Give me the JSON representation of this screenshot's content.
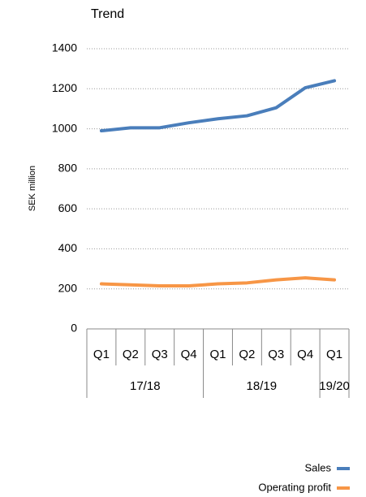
{
  "chart_data": {
    "type": "line",
    "title": "Trend",
    "y_label": "SEK million",
    "category_groups": [
      {
        "label": "17/18",
        "categories": [
          "Q1",
          "Q2",
          "Q3",
          "Q4"
        ]
      },
      {
        "label": "18/19",
        "categories": [
          "Q1",
          "Q2",
          "Q3",
          "Q4"
        ]
      },
      {
        "label": "19/20",
        "categories": [
          "Q1"
        ]
      }
    ],
    "series": [
      {
        "name": "Sales",
        "color": "#4a7ebb",
        "values": [
          990,
          1005,
          1005,
          1030,
          1050,
          1065,
          1105,
          1205,
          1240
        ]
      },
      {
        "name": "Operating profit",
        "color": "#f79646",
        "values": [
          225,
          220,
          215,
          215,
          225,
          230,
          245,
          255,
          245
        ]
      }
    ],
    "ylim": [
      0,
      1400
    ],
    "yticks": [
      0,
      200,
      400,
      600,
      800,
      1000,
      1200,
      1400
    ],
    "grid": true,
    "legend": "bottom-right"
  }
}
